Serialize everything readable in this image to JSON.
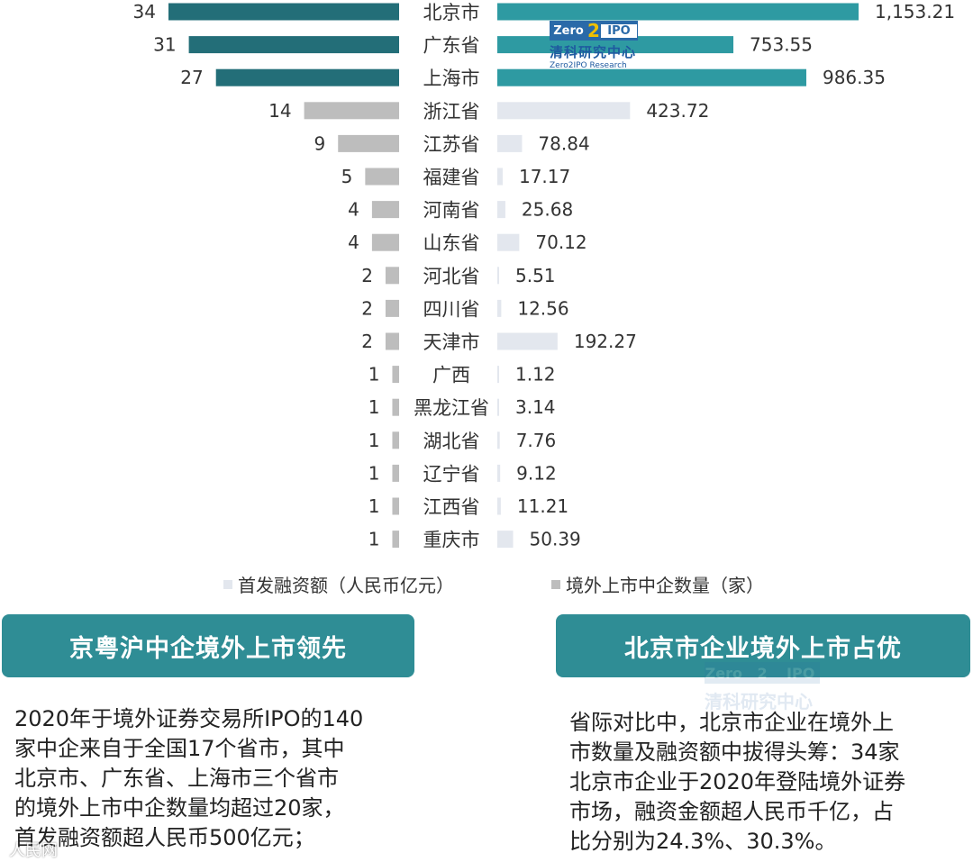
{
  "chart_data": {
    "type": "bar",
    "categories": [
      "北京市",
      "广东省",
      "上海市",
      "浙江省",
      "江苏省",
      "福建省",
      "河南省",
      "山东省",
      "河北省",
      "四川省",
      "天津市",
      "广西",
      "黑龙江省",
      "湖北省",
      "辽宁省",
      "江西省",
      "重庆市"
    ],
    "series": [
      {
        "name": "境外上市中企数量（家）",
        "values": [
          34,
          31,
          27,
          14,
          9,
          5,
          4,
          4,
          2,
          2,
          2,
          1,
          1,
          1,
          1,
          1,
          1
        ]
      },
      {
        "name": "首发融资额（人民币亿元）",
        "values": [
          1153.21,
          753.55,
          986.35,
          423.72,
          78.84,
          17.17,
          25.68,
          70.12,
          5.51,
          12.56,
          192.27,
          1.12,
          3.14,
          7.76,
          9.12,
          11.21,
          50.39
        ]
      }
    ],
    "count_labels": [
      "34",
      "31",
      "27",
      "14",
      "9",
      "5",
      "4",
      "4",
      "2",
      "2",
      "2",
      "1",
      "1",
      "1",
      "1",
      "1",
      "1"
    ],
    "amount_labels": [
      "1,153.21",
      "753.55",
      "986.35",
      "423.72",
      "78.84",
      "17.17",
      "25.68",
      "70.12",
      "5.51",
      "12.56",
      "192.27",
      "1.12",
      "3.14",
      "7.76",
      "9.12",
      "11.21",
      "50.39"
    ],
    "layout_type": "butterfly",
    "highlight_top": 3,
    "colors": {
      "count_top": "#236e78",
      "count_other": "#bdbdbd",
      "amount_top": "#2e9aa2",
      "amount_other": "#e3e7ee"
    }
  },
  "legend": {
    "amount": "首发融资额（人民币亿元）",
    "count": "境外上市中企数量（家）"
  },
  "logo": {
    "box_left": "Zero",
    "box_two": "2",
    "box_right": "IPO",
    "cn": "清科研究中心",
    "en": "Zero2IPO Research"
  },
  "cards": {
    "left": {
      "title": "京粤沪中企境外上市领先",
      "body": "2020年于境外证券交易所IPO的140\n家中企来自于全国17个省市，其中\n北京市、广东省、上海市三个省市\n的境外上市中企数量均超过20家，\n首发融资额超人民币500亿元；"
    },
    "right": {
      "title": "北京市企业境外上市占优",
      "body": "省际对比中，北京市企业在境外上\n市数量及融资额中拔得头筹：34家\n北京市企业于2020年登陆境外证券\n市场，融资金额超人民币千亿，占\n比分别为24.3%、30.3%。"
    }
  },
  "watermark": {
    "text": "人民网"
  }
}
